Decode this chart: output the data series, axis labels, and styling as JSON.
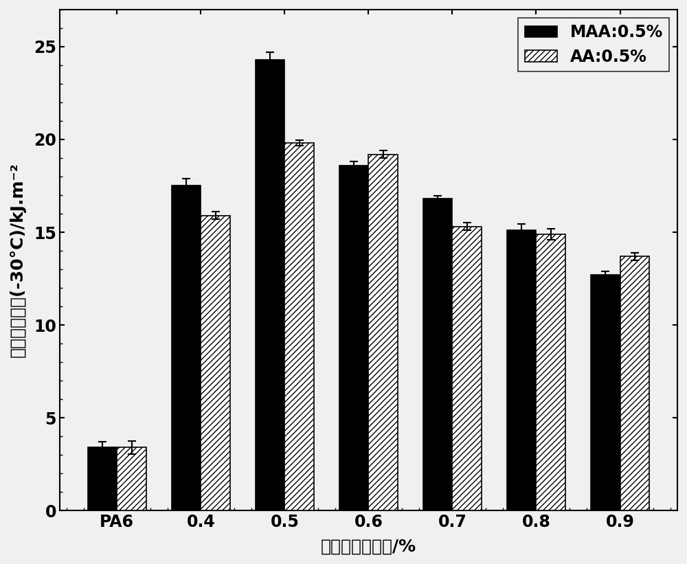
{
  "categories": [
    "PA6",
    "0.4",
    "0.5",
    "0.6",
    "0.7",
    "0.8",
    "0.9"
  ],
  "maa_values": [
    3.4,
    17.5,
    24.3,
    18.6,
    16.8,
    15.1,
    12.7
  ],
  "maa_errors": [
    0.3,
    0.4,
    0.4,
    0.2,
    0.15,
    0.35,
    0.2
  ],
  "aa_values": [
    3.4,
    15.9,
    19.8,
    19.2,
    15.3,
    14.9,
    13.7
  ],
  "aa_errors": [
    0.35,
    0.2,
    0.15,
    0.2,
    0.2,
    0.3,
    0.2
  ],
  "ylabel": "缺口冲击强度(-30°C)/kJ.m⁻²",
  "xlabel": "核层交联剂用量/%",
  "legend_maa": "MAA:0.5%",
  "legend_aa": "AA:0.5%",
  "ylim": [
    0,
    27
  ],
  "yticks": [
    0,
    5,
    10,
    15,
    20,
    25
  ],
  "bar_width": 0.35,
  "maa_color": "#000000",
  "aa_color": "#ffffff",
  "aa_hatch": "////",
  "figsize": [
    10.0,
    8.21
  ],
  "dpi": 100,
  "axis_fontsize": 18,
  "tick_fontsize": 17,
  "legend_fontsize": 17,
  "bg_color": "#f0f0f0"
}
